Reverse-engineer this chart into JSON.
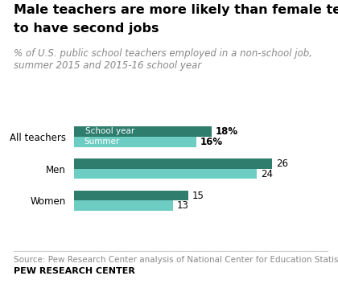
{
  "title_line1": "Male teachers are more likely than female teachers",
  "title_line2": "to have second jobs",
  "subtitle": "% of U.S. public school teachers employed in a non-school job,\nsummer 2015 and 2015-16 school year",
  "categories": [
    "All teachers",
    "Men",
    "Women"
  ],
  "school_year_values": [
    18,
    26,
    15
  ],
  "summer_values": [
    16,
    24,
    13
  ],
  "school_year_color": "#2e7d6d",
  "summer_color": "#6ecdc3",
  "school_year_label": "School year",
  "summer_label": "Summer",
  "source_text": "Source: Pew Research Center analysis of National Center for Education Statistics data.",
  "footer_text": "PEW RESEARCH CENTER",
  "background_color": "#ffffff",
  "bar_height": 0.32,
  "label_fontsize": 8.5,
  "title_fontsize": 11.5,
  "subtitle_fontsize": 8.5,
  "source_fontsize": 7.5,
  "category_label_fontsize": 8.5,
  "xlim": [
    0,
    32
  ]
}
